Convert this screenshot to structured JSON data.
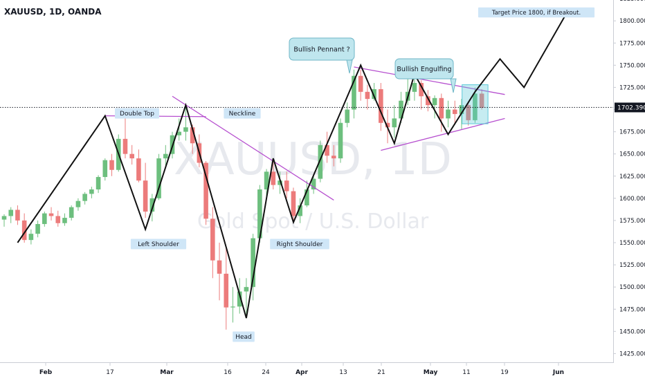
{
  "symbol_title": "XAUUSD, 1D, OANDA",
  "watermark": {
    "symbol": "XAUUSD, 1D",
    "description": "Gold Spot / U.S. Dollar"
  },
  "colors": {
    "up": "#6dbf7e",
    "down": "#ec7b7b",
    "pattern": "#111111",
    "trendline": "#b64fcf",
    "label_bg": "#cfe6f7",
    "bubble_bg": "#bfe6ee",
    "highlight": "#5cc8d8"
  },
  "price_axis": {
    "ticks": [
      "1825.000",
      "1800.000",
      "1775.000",
      "1750.000",
      "1725.000",
      "1700.000",
      "1675.000",
      "1650.000",
      "1625.000",
      "1600.000",
      "1575.000",
      "1550.000",
      "1525.000",
      "1500.000",
      "1475.000",
      "1450.000",
      "1425.000"
    ],
    "current_price": "1702.390"
  },
  "time_axis": {
    "ticks": [
      "Feb",
      "17",
      "Mar",
      "16",
      "24",
      "Apr",
      "13",
      "21",
      "May",
      "11",
      "19",
      "Jun"
    ]
  },
  "annotations": {
    "double_top": "Double Top",
    "neckline": "Neckline",
    "left_shoulder": "Left Shoulder",
    "head": "Head",
    "right_shoulder": "Right Shoulder",
    "bullish_pennant": "Bullish Pennant ?",
    "bullish_engulfing": "Bullish Engulfing",
    "target": "Target Price 1800, if Breakout."
  },
  "chart_data": {
    "type": "candlestick",
    "title": "XAUUSD, 1D, OANDA",
    "ylim": [
      1417,
      1838
    ],
    "current_price": 1702.39,
    "dates": [
      "Jan 30",
      "Jan 31",
      "Feb 3",
      "Feb 4",
      "Feb 5",
      "Feb 6",
      "Feb 7",
      "Feb 10",
      "Feb 11",
      "Feb 12",
      "Feb 13",
      "Feb 14",
      "Feb 17",
      "Feb 18",
      "Feb 19",
      "Feb 20",
      "Feb 21",
      "Feb 24",
      "Feb 25",
      "Feb 26",
      "Feb 27",
      "Feb 28",
      "Mar 2",
      "Mar 3",
      "Mar 4",
      "Mar 5",
      "Mar 6",
      "Mar 9",
      "Mar 10",
      "Mar 11",
      "Mar 12",
      "Mar 13",
      "Mar 16",
      "Mar 17",
      "Mar 18",
      "Mar 19",
      "Mar 20",
      "Mar 23",
      "Mar 24",
      "Mar 25",
      "Mar 26",
      "Mar 27",
      "Mar 30",
      "Mar 31",
      "Apr 1",
      "Apr 2",
      "Apr 3",
      "Apr 6",
      "Apr 7",
      "Apr 8",
      "Apr 9",
      "Apr 10",
      "Apr 13",
      "Apr 14",
      "Apr 15",
      "Apr 16",
      "Apr 17",
      "Apr 20",
      "Apr 21",
      "Apr 22",
      "Apr 23",
      "Apr 24",
      "Apr 27",
      "Apr 28",
      "Apr 29",
      "Apr 30",
      "May 1",
      "May 4",
      "May 5",
      "May 6",
      "May 7",
      "May 8"
    ],
    "ohlc": [
      [
        1576,
        1582,
        1568,
        1580
      ],
      [
        1580,
        1590,
        1572,
        1587
      ],
      [
        1587,
        1592,
        1570,
        1575
      ],
      [
        1575,
        1583,
        1550,
        1553
      ],
      [
        1553,
        1565,
        1548,
        1560
      ],
      [
        1560,
        1575,
        1556,
        1571
      ],
      [
        1571,
        1585,
        1568,
        1583
      ],
      [
        1583,
        1590,
        1575,
        1580
      ],
      [
        1580,
        1586,
        1568,
        1572
      ],
      [
        1572,
        1583,
        1569,
        1578
      ],
      [
        1578,
        1592,
        1575,
        1590
      ],
      [
        1590,
        1600,
        1586,
        1597
      ],
      [
        1597,
        1607,
        1593,
        1605
      ],
      [
        1605,
        1613,
        1600,
        1610
      ],
      [
        1610,
        1626,
        1606,
        1624
      ],
      [
        1624,
        1645,
        1620,
        1643
      ],
      [
        1643,
        1650,
        1625,
        1632
      ],
      [
        1632,
        1672,
        1630,
        1667
      ],
      [
        1667,
        1690,
        1645,
        1650
      ],
      [
        1650,
        1660,
        1638,
        1645
      ],
      [
        1645,
        1655,
        1618,
        1620
      ],
      [
        1620,
        1640,
        1578,
        1585
      ],
      [
        1585,
        1605,
        1574,
        1600
      ],
      [
        1600,
        1650,
        1598,
        1645
      ],
      [
        1645,
        1660,
        1637,
        1650
      ],
      [
        1650,
        1675,
        1645,
        1671
      ],
      [
        1671,
        1690,
        1665,
        1675
      ],
      [
        1675,
        1704,
        1665,
        1680
      ],
      [
        1680,
        1683,
        1650,
        1662
      ],
      [
        1662,
        1672,
        1635,
        1640
      ],
      [
        1640,
        1642,
        1570,
        1577
      ],
      [
        1577,
        1590,
        1510,
        1530
      ],
      [
        1530,
        1550,
        1485,
        1515
      ],
      [
        1515,
        1545,
        1452,
        1477
      ],
      [
        1477,
        1500,
        1460,
        1478
      ],
      [
        1478,
        1510,
        1470,
        1495
      ],
      [
        1495,
        1510,
        1465,
        1500
      ],
      [
        1500,
        1560,
        1485,
        1555
      ],
      [
        1555,
        1615,
        1550,
        1610
      ],
      [
        1610,
        1633,
        1600,
        1630
      ],
      [
        1630,
        1645,
        1610,
        1615
      ],
      [
        1615,
        1630,
        1605,
        1620
      ],
      [
        1620,
        1630,
        1600,
        1608
      ],
      [
        1608,
        1612,
        1575,
        1580
      ],
      [
        1580,
        1600,
        1572,
        1592
      ],
      [
        1592,
        1620,
        1590,
        1610
      ],
      [
        1610,
        1625,
        1605,
        1622
      ],
      [
        1622,
        1665,
        1618,
        1660
      ],
      [
        1660,
        1675,
        1640,
        1648
      ],
      [
        1648,
        1660,
        1636,
        1645
      ],
      [
        1645,
        1690,
        1640,
        1685
      ],
      [
        1685,
        1708,
        1680,
        1700
      ],
      [
        1700,
        1745,
        1690,
        1738
      ],
      [
        1738,
        1745,
        1710,
        1720
      ],
      [
        1720,
        1728,
        1700,
        1712
      ],
      [
        1712,
        1730,
        1710,
        1723
      ],
      [
        1723,
        1730,
        1676,
        1685
      ],
      [
        1685,
        1700,
        1662,
        1680
      ],
      [
        1680,
        1705,
        1668,
        1690
      ],
      [
        1690,
        1720,
        1685,
        1710
      ],
      [
        1710,
        1738,
        1705,
        1720
      ],
      [
        1720,
        1740,
        1710,
        1730
      ],
      [
        1730,
        1733,
        1700,
        1715
      ],
      [
        1715,
        1722,
        1698,
        1705
      ],
      [
        1705,
        1716,
        1690,
        1713
      ],
      [
        1713,
        1718,
        1675,
        1690
      ],
      [
        1690,
        1710,
        1680,
        1700
      ],
      [
        1700,
        1710,
        1683,
        1695
      ],
      [
        1695,
        1712,
        1678,
        1705
      ],
      [
        1705,
        1708,
        1682,
        1688
      ],
      [
        1688,
        1725,
        1685,
        1718
      ],
      [
        1718,
        1723,
        1700,
        1702
      ]
    ],
    "patterns": {
      "zigzag": [
        [
          "Feb 3",
          1550
        ],
        [
          "Feb 20",
          1693
        ],
        [
          "Feb 28",
          1565
        ],
        [
          "Mar 9",
          1705
        ],
        [
          "Mar 20",
          1465
        ],
        [
          "Mar 26",
          1645
        ],
        [
          "Mar 31",
          1573
        ],
        [
          "Apr 14",
          1750
        ],
        [
          "Apr 21",
          1662
        ],
        [
          "Apr 24",
          1740
        ],
        [
          "May 1",
          1672
        ],
        [
          "May 7",
          1720
        ],
        [
          "May 12",
          1757
        ],
        [
          "May 17",
          1725
        ],
        [
          "May 26",
          1810
        ]
      ],
      "double_top_line": [
        [
          "Feb 20",
          1693
        ],
        [
          "Mar 12",
          1692
        ]
      ],
      "neckline": [
        [
          "Mar 5",
          1715
        ],
        [
          "Apr 8",
          1598
        ]
      ],
      "pennant_upper": [
        [
          "Apr 13",
          1748
        ],
        [
          "May 13",
          1717
        ]
      ],
      "pennant_lower": [
        [
          "Apr 17",
          1654
        ],
        [
          "May 13",
          1690
        ]
      ],
      "engulfing_box": {
        "from": "May 6",
        "to": "May 8",
        "low": 1684,
        "high": 1728
      }
    }
  }
}
